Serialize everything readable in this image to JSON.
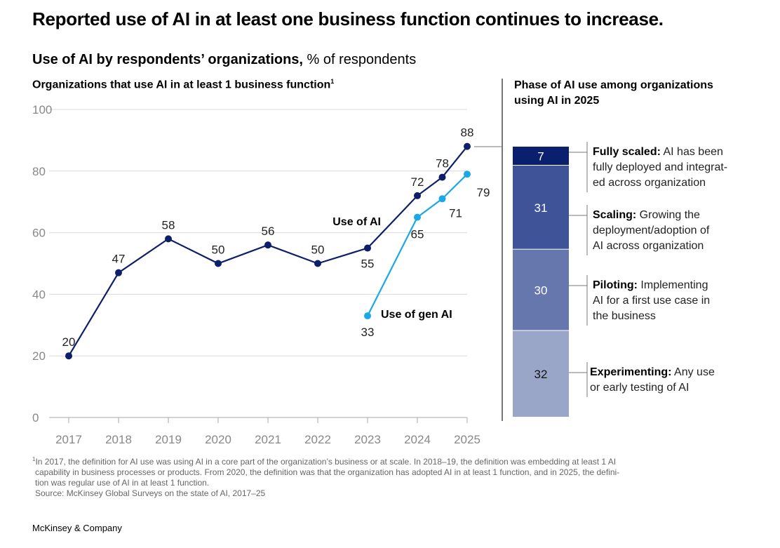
{
  "title": "Reported use of AI in at least one business function continues to increase.",
  "subtitle_bold": "Use of AI by respondents’ organizations,",
  "subtitle_rest": " % of respondents",
  "left_heading": "Organizations that use AI in at least 1 business function",
  "left_heading_sup": "1",
  "right_heading": "Phase of AI use among organizations using AI in 2025",
  "colors": {
    "ai": "#0d1f6b",
    "genai": "#1ba8e6",
    "grid": "#d9d9d9",
    "phase": [
      "#9aa6c8",
      "#6677ad",
      "#3f5398",
      "#0a1f6e"
    ]
  },
  "chart_data": [
    {
      "type": "line",
      "x": [
        2017,
        2018,
        2019,
        2020,
        2021,
        2022,
        2023,
        2024,
        2024.5,
        2025
      ],
      "xticks": [
        "2017",
        "2018",
        "2019",
        "2020",
        "2021",
        "2022",
        "2023",
        "2024",
        "2025"
      ],
      "yticks": [
        "0",
        "20",
        "40",
        "60",
        "80",
        "100"
      ],
      "ylim": [
        0,
        100
      ],
      "grid": true,
      "series": [
        {
          "name": "Use of AI",
          "x": [
            2017,
            2018,
            2019,
            2020,
            2021,
            2022,
            2023,
            2024,
            2024.5,
            2025
          ],
          "values": [
            20,
            47,
            58,
            50,
            56,
            50,
            55,
            72,
            78,
            88
          ]
        },
        {
          "name": "Use of gen AI",
          "x": [
            2023,
            2024,
            2024.5,
            2025
          ],
          "values": [
            33,
            65,
            71,
            79
          ]
        }
      ]
    },
    {
      "type": "bar",
      "stacked": true,
      "category": "2025",
      "segments": [
        {
          "name": "Experimenting",
          "value": 32,
          "desc": "Any use or early testing of AI"
        },
        {
          "name": "Piloting",
          "value": 30,
          "desc": "Implementing AI for a first use case in the business"
        },
        {
          "name": "Scaling",
          "value": 31,
          "desc": "Growing the deployment/adoption of AI across organization"
        },
        {
          "name": "Fully scaled",
          "value": 7,
          "desc": "AI has been fully deployed and integrated across organization"
        }
      ]
    }
  ],
  "phase_labels": [
    {
      "bold": "Experimenting:",
      "lines": [
        " Any use",
        "or early testing of AI"
      ]
    },
    {
      "bold": "Piloting:",
      "lines": [
        " Implementing",
        "AI for a first use case in",
        "the business"
      ]
    },
    {
      "bold": "Scaling:",
      "lines": [
        " Growing the",
        "deployment/adoption of",
        "AI across organization"
      ]
    },
    {
      "bold": "Fully scaled:",
      "lines": [
        " AI has been",
        "fully deployed and integrat-",
        "ed across organization"
      ]
    }
  ],
  "footnote": [
    "In 2017, the definition for AI use was using AI in a core part of the organization’s business or at scale. In 2018–19, the definition was embedding at least 1 AI",
    "capability in business processes or products. From 2020, the definition was that the organization has adopted AI in at least 1 function, and in 2025, the defini-",
    "tion was regular use of AI in at least 1 function."
  ],
  "footnote_mark": "1",
  "source": "Source: McKinsey Global Surveys on the state of AI, 2017–25",
  "brand": "McKinsey & Company"
}
